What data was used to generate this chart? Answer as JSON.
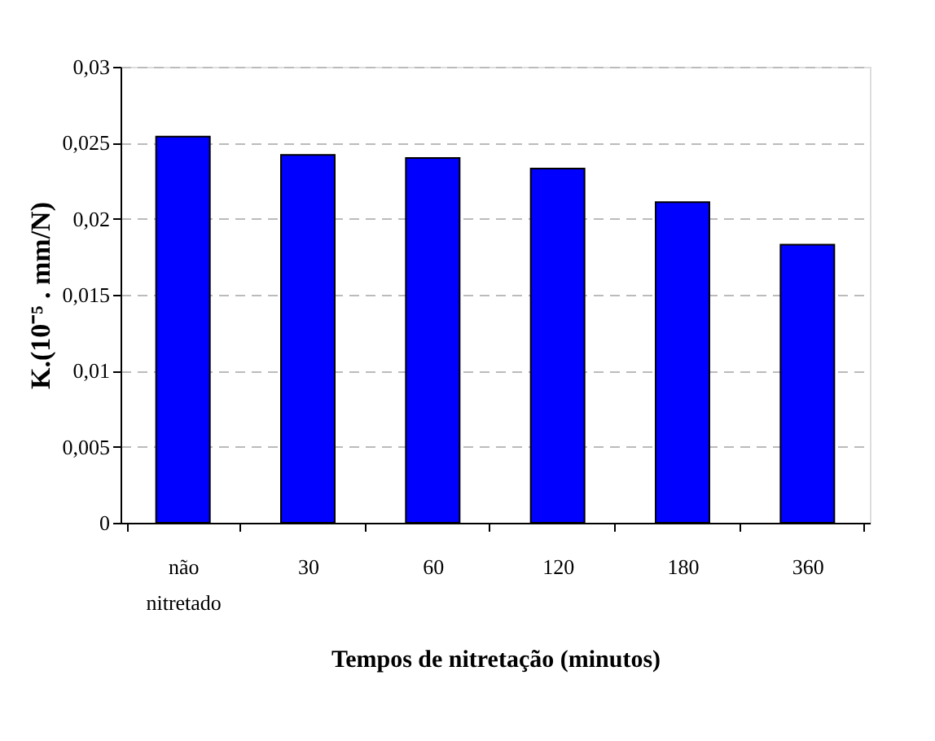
{
  "chart_data": {
    "type": "bar",
    "xlabel": "Tempos de nitretação (minutos)",
    "ylabel": "K.(10⁻⁵ . mm/N)",
    "categories": [
      "não nitretado",
      "30",
      "60",
      "120",
      "180",
      "360"
    ],
    "values": [
      0.0254,
      0.0242,
      0.024,
      0.0233,
      0.0211,
      0.0183
    ],
    "color": "#0000ff",
    "ylim": [
      0,
      0.03
    ],
    "yticks": [
      0,
      {
        "value": 0.005,
        "label": "0,005"
      },
      {
        "value": 0.01,
        "label": "0,01"
      },
      {
        "value": 0.015,
        "label": "0,015"
      },
      {
        "value": 0.02,
        "label": "0,02"
      },
      {
        "value": 0.025,
        "label": "0,025"
      },
      {
        "value": 0.03,
        "label": "0,03"
      }
    ],
    "grid": "y"
  }
}
